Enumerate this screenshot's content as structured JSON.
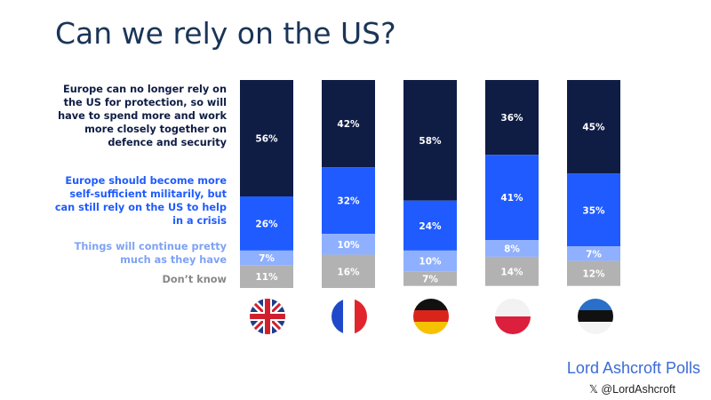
{
  "title": "Can we rely on the US?",
  "brand": "Lord Ashcroft Polls",
  "handle": "𝕏 @LordAshcroft",
  "colors": {
    "title": "#1a3557",
    "series": [
      "#0f1d45",
      "#1f5bff",
      "#8fb0ff",
      "#b2b2b2"
    ],
    "label_text": [
      "#ffffff",
      "#ffffff",
      "#ffffff",
      "#ffffff"
    ],
    "legend_text": [
      "#0f1d45",
      "#1f5bff",
      "#7ea2f5",
      "#888888"
    ]
  },
  "chart_data": {
    "type": "bar",
    "stacked": true,
    "title": "Can we rely on the US?",
    "categories": [
      "UK",
      "France",
      "Germany",
      "Poland",
      "Estonia"
    ],
    "category_flags": [
      "uk-flag-icon",
      "france-flag-icon",
      "germany-flag-icon",
      "poland-flag-icon",
      "estonia-flag-icon"
    ],
    "series": [
      {
        "name": "Europe can no longer rely on the US for protection, so will have to spend more and work more closely together on defence and security",
        "values": [
          56,
          42,
          58,
          36,
          45
        ]
      },
      {
        "name": "Europe should become more self-sufficient militarily, but can still rely on the US to help in a crisis",
        "values": [
          26,
          32,
          24,
          41,
          35
        ]
      },
      {
        "name": "Things will continue pretty much as they have",
        "values": [
          7,
          10,
          10,
          8,
          7
        ]
      },
      {
        "name": "Don’t know",
        "values": [
          11,
          16,
          7,
          14,
          12
        ]
      }
    ],
    "labels": [
      [
        "56%",
        "42%",
        "58%",
        "36%",
        "45%"
      ],
      [
        "26%",
        "32%",
        "24%",
        "41%",
        "35%"
      ],
      [
        "7%",
        "10%",
        "10%",
        "8%",
        "7%"
      ],
      [
        "11%",
        "16%",
        "7%",
        "14%",
        "12%"
      ]
    ],
    "legend_lines": [
      [
        "Europe can no longer rely on",
        "the US for protection, so will",
        "have to spend more and work",
        "more closely together on",
        "defence and security"
      ],
      [
        "Europe should become more",
        "self-sufficient militarily, but",
        "can still rely on the US to help",
        "in a crisis"
      ],
      [
        "Things will continue pretty",
        "much as they have"
      ],
      [
        "Don’t know"
      ]
    ],
    "ylim": [
      0,
      100
    ],
    "legend_position": "left",
    "grid": false
  }
}
